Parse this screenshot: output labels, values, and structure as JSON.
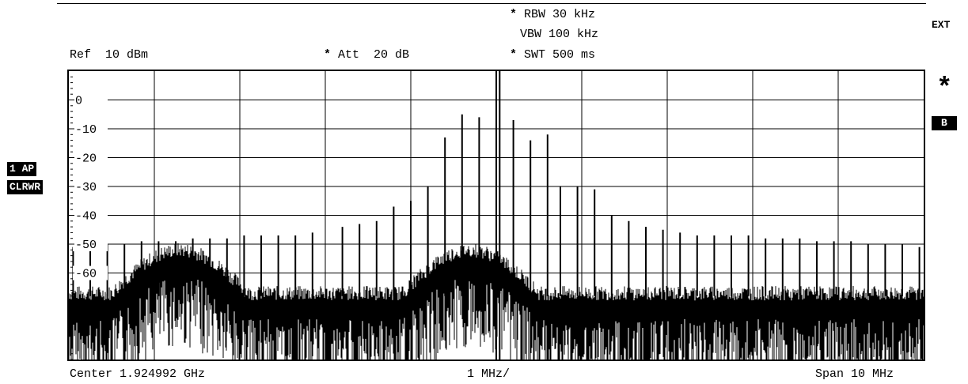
{
  "header": {
    "rbw": "RBW 30 kHz",
    "vbw": "VBW 100 kHz",
    "swt": "SWT 500 ms",
    "ref": "Ref  10 dBm",
    "att": "Att  20 dB",
    "star": "*",
    "ext": "EXT"
  },
  "badges": {
    "trace": "1 AP",
    "mode": "CLRWR",
    "side_b": "B",
    "side_star": "*"
  },
  "footer": {
    "center": "Center 1.924992 GHz",
    "div": "1 MHz/",
    "span": "Span 10 MHz"
  },
  "chart_data": {
    "type": "spectrum",
    "x_center_ghz": 1.924992,
    "x_span_mhz": 10,
    "x_div_mhz": 1,
    "y_ref_dbm": 10,
    "y_div_db": 10,
    "y_tick_labels": [
      "0",
      "-10",
      "-20",
      "-30",
      "-40",
      "-50",
      "-60"
    ],
    "y_ticks": [
      0,
      -10,
      -20,
      -30,
      -40,
      -50,
      -60
    ],
    "ylim": [
      -90,
      10
    ],
    "noise_floor_dbm": -68,
    "carriers": [
      {
        "offset_mhz": 0.0,
        "level_dbm": 10
      },
      {
        "offset_mhz": 0.04,
        "level_dbm": 10
      }
    ],
    "spurs": [
      {
        "offset_mhz": -4.95,
        "level_dbm": -51
      },
      {
        "offset_mhz": -4.75,
        "level_dbm": -50
      },
      {
        "offset_mhz": -4.55,
        "level_dbm": -50
      },
      {
        "offset_mhz": -4.35,
        "level_dbm": -50
      },
      {
        "offset_mhz": -4.15,
        "level_dbm": -49
      },
      {
        "offset_mhz": -3.95,
        "level_dbm": -49
      },
      {
        "offset_mhz": -3.75,
        "level_dbm": -49
      },
      {
        "offset_mhz": -3.55,
        "level_dbm": -48
      },
      {
        "offset_mhz": -3.35,
        "level_dbm": -48
      },
      {
        "offset_mhz": -3.15,
        "level_dbm": -48
      },
      {
        "offset_mhz": -2.95,
        "level_dbm": -47
      },
      {
        "offset_mhz": -2.75,
        "level_dbm": -47
      },
      {
        "offset_mhz": -2.55,
        "level_dbm": -47
      },
      {
        "offset_mhz": -2.35,
        "level_dbm": -47
      },
      {
        "offset_mhz": -2.15,
        "level_dbm": -46
      },
      {
        "offset_mhz": -1.8,
        "level_dbm": -44
      },
      {
        "offset_mhz": -1.6,
        "level_dbm": -43
      },
      {
        "offset_mhz": -1.4,
        "level_dbm": -42
      },
      {
        "offset_mhz": -1.2,
        "level_dbm": -37
      },
      {
        "offset_mhz": -1.0,
        "level_dbm": -35
      },
      {
        "offset_mhz": -0.8,
        "level_dbm": -30
      },
      {
        "offset_mhz": -0.8,
        "level_dbm": -40
      },
      {
        "offset_mhz": -0.6,
        "level_dbm": -13
      },
      {
        "offset_mhz": -0.4,
        "level_dbm": -5
      },
      {
        "offset_mhz": -0.2,
        "level_dbm": -6
      },
      {
        "offset_mhz": 0.2,
        "level_dbm": -7
      },
      {
        "offset_mhz": 0.4,
        "level_dbm": -14
      },
      {
        "offset_mhz": 0.6,
        "level_dbm": -12
      },
      {
        "offset_mhz": 0.75,
        "level_dbm": -30
      },
      {
        "offset_mhz": 0.95,
        "level_dbm": -30
      },
      {
        "offset_mhz": 1.15,
        "level_dbm": -31
      },
      {
        "offset_mhz": 1.35,
        "level_dbm": -40
      },
      {
        "offset_mhz": 1.55,
        "level_dbm": -42
      },
      {
        "offset_mhz": 1.75,
        "level_dbm": -44
      },
      {
        "offset_mhz": 1.95,
        "level_dbm": -45
      },
      {
        "offset_mhz": 2.15,
        "level_dbm": -46
      },
      {
        "offset_mhz": 2.35,
        "level_dbm": -47
      },
      {
        "offset_mhz": 2.55,
        "level_dbm": -47
      },
      {
        "offset_mhz": 2.75,
        "level_dbm": -47
      },
      {
        "offset_mhz": 2.95,
        "level_dbm": -47
      },
      {
        "offset_mhz": 3.15,
        "level_dbm": -48
      },
      {
        "offset_mhz": 3.35,
        "level_dbm": -48
      },
      {
        "offset_mhz": 3.55,
        "level_dbm": -48
      },
      {
        "offset_mhz": 3.75,
        "level_dbm": -49
      },
      {
        "offset_mhz": 3.95,
        "level_dbm": -49
      },
      {
        "offset_mhz": 4.15,
        "level_dbm": -49
      },
      {
        "offset_mhz": 4.35,
        "level_dbm": -50
      },
      {
        "offset_mhz": 4.55,
        "level_dbm": -50
      },
      {
        "offset_mhz": 4.75,
        "level_dbm": -50
      },
      {
        "offset_mhz": 4.95,
        "level_dbm": -51
      }
    ],
    "humps": [
      {
        "center_mhz": -3.7,
        "width_mhz": 1.6,
        "level_dbm": -53
      },
      {
        "center_mhz": -0.3,
        "width_mhz": 1.6,
        "level_dbm": -53
      }
    ],
    "dropouts_mhz": [
      -1.65,
      1.75,
      3.45
    ],
    "grid": true
  }
}
